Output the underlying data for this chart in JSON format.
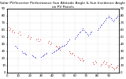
{
  "title": "Solar PV/Inverter Performance Sun Altitude Angle & Sun Incidence Angle on PV Panels",
  "background_color": "#ffffff",
  "grid_color": "#b0b0b0",
  "blue_color": "#0000cc",
  "red_color": "#cc0000",
  "blue_x": [
    7,
    8,
    9,
    13,
    14,
    15,
    16,
    17,
    22,
    23,
    24,
    25,
    30,
    31,
    32,
    33,
    34,
    35,
    40,
    41,
    42,
    43,
    44,
    45,
    46,
    47,
    48,
    49,
    50,
    51,
    52,
    53,
    54,
    55,
    60,
    61,
    62,
    63,
    64,
    65,
    66,
    67,
    68,
    69,
    70,
    71,
    72,
    73,
    74,
    75,
    80,
    81,
    82,
    83,
    84,
    85,
    86,
    87,
    88,
    89,
    90,
    91,
    92,
    93,
    94,
    95,
    96,
    97,
    98,
    99
  ],
  "blue_y": [
    38,
    36,
    34,
    30,
    28,
    27,
    26,
    25,
    24,
    23,
    22,
    21,
    22,
    23,
    24,
    25,
    26,
    27,
    28,
    29,
    30,
    31,
    32,
    33,
    34,
    35,
    36,
    37,
    38,
    39,
    40,
    42,
    44,
    46,
    48,
    50,
    52,
    54,
    56,
    58,
    60,
    62,
    60,
    58,
    56,
    54,
    52,
    54,
    56,
    58,
    60,
    62,
    64,
    66,
    68,
    70,
    72,
    74,
    76,
    78,
    80,
    78,
    76,
    74,
    72,
    74,
    76,
    78,
    80,
    82
  ],
  "red_x": [
    0,
    1,
    2,
    3,
    4,
    5,
    6,
    10,
    11,
    12,
    18,
    19,
    20,
    21,
    26,
    27,
    28,
    29,
    36,
    37,
    38,
    39,
    43,
    44,
    45,
    46,
    47,
    55,
    56,
    57,
    58,
    59,
    63,
    64,
    65,
    66,
    67,
    68,
    76,
    77,
    78,
    79,
    83,
    84,
    85,
    86,
    87,
    88,
    89,
    90,
    91,
    92,
    93,
    94,
    95,
    96,
    97,
    98,
    99
  ],
  "red_y": [
    62,
    64,
    60,
    62,
    58,
    60,
    56,
    55,
    57,
    53,
    50,
    52,
    48,
    50,
    46,
    48,
    44,
    46,
    42,
    44,
    40,
    42,
    38,
    36,
    34,
    36,
    32,
    30,
    28,
    26,
    28,
    24,
    22,
    20,
    18,
    20,
    16,
    18,
    14,
    12,
    16,
    14,
    10,
    12,
    14,
    16,
    12,
    14,
    10,
    8,
    10,
    12,
    8,
    6,
    4,
    6,
    8,
    10,
    12
  ],
  "ylim": [
    0,
    90
  ],
  "xlim": [
    0,
    99
  ],
  "ylim_right": [
    0,
    90
  ],
  "x_tick_interval": 10,
  "y_tick_interval": 10,
  "marker_size": 1.2,
  "title_fontsize": 3.2,
  "tick_fontsize": 2.8,
  "figsize": [
    1.6,
    1.0
  ],
  "dpi": 100
}
